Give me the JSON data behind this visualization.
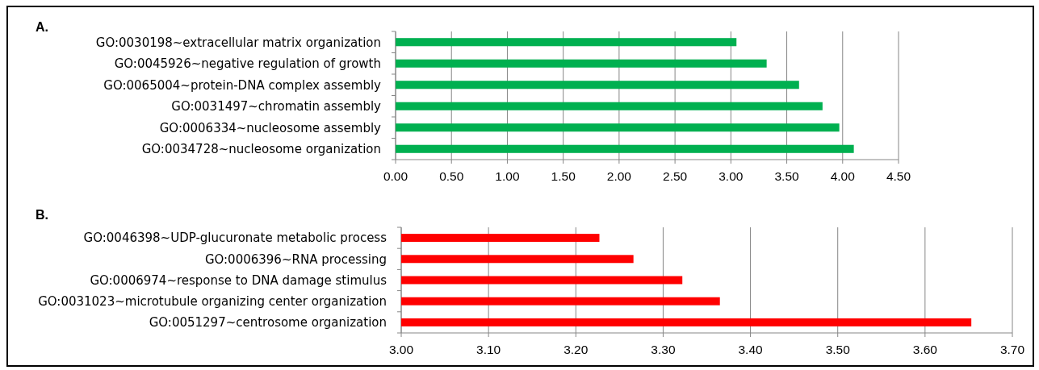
{
  "chart_data": [
    {
      "type": "bar",
      "orientation": "horizontal",
      "title": "A.",
      "categories": [
        "GO:0030198~extracellular matrix organization",
        "GO:0045926~negative regulation of growth",
        "GO:0065004~protein-DNA complex assembly",
        "GO:0031497~chromatin assembly",
        "GO:0006334~nucleosome assembly",
        "GO:0034728~nucleosome organization"
      ],
      "values": [
        3.05,
        3.32,
        3.61,
        3.82,
        3.97,
        4.1
      ],
      "color": "#00b050",
      "xlim": [
        0,
        4.5
      ],
      "xticks": [
        {
          "value": 0,
          "label": "0.00"
        },
        {
          "value": 0.5,
          "label": "0.50"
        },
        {
          "value": 1,
          "label": "1.00"
        },
        {
          "value": 1.5,
          "label": "1.50"
        },
        {
          "value": 2,
          "label": "2.00"
        },
        {
          "value": 2.5,
          "label": "2.50"
        },
        {
          "value": 3,
          "label": "3.00"
        },
        {
          "value": 3.5,
          "label": "3.50"
        },
        {
          "value": 4,
          "label": "4.00"
        },
        {
          "value": 4.5,
          "label": "4.50"
        }
      ],
      "grid": "x"
    },
    {
      "type": "bar",
      "orientation": "horizontal",
      "title": "B.",
      "categories": [
        "GO:0046398~UDP-glucuronate metabolic process",
        "GO:0006396~RNA processing",
        "GO:0006974~response to DNA damage stimulus",
        "GO:0031023~microtubule organizing center organization",
        "GO:0051297~centrosome organization"
      ],
      "values": [
        3.227,
        3.266,
        3.322,
        3.365,
        3.653
      ],
      "color": "#ff0000",
      "xlim": [
        3.0,
        3.7
      ],
      "xticks": [
        {
          "value": 3.0,
          "label": "3.00"
        },
        {
          "value": 3.1,
          "label": "3.10"
        },
        {
          "value": 3.2,
          "label": "3.20"
        },
        {
          "value": 3.3,
          "label": "3.30"
        },
        {
          "value": 3.4,
          "label": "3.40"
        },
        {
          "value": 3.5,
          "label": "3.50"
        },
        {
          "value": 3.6,
          "label": "3.60"
        },
        {
          "value": 3.7,
          "label": "3.70"
        }
      ],
      "grid": "x"
    }
  ]
}
